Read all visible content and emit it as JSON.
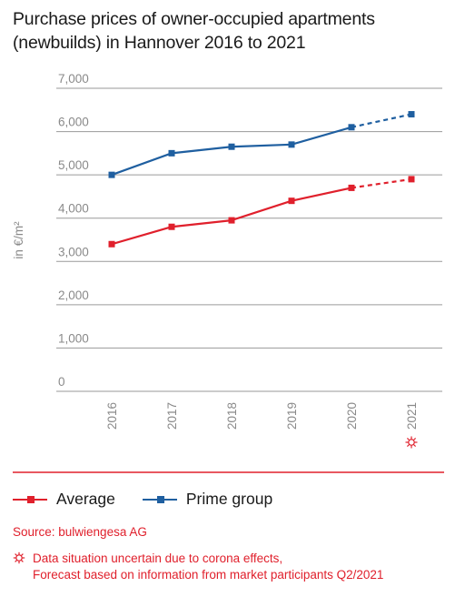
{
  "title": "Purchase prices of owner-occupied apartments (newbuilds) in Hannover 2016 to 2021",
  "colors": {
    "average": "#e0202c",
    "prime": "#1f5fa0",
    "grid": "#9a9a9a",
    "axis_text": "#8a8a8a",
    "separator": "#e0202c"
  },
  "chart_data": {
    "type": "line",
    "categories": [
      "2016",
      "2017",
      "2018",
      "2019",
      "2020",
      "2021"
    ],
    "ylabel": "in €/m²",
    "ylim": [
      0,
      7000
    ],
    "yticks": [
      0,
      1000,
      2000,
      3000,
      4000,
      5000,
      6000,
      7000
    ],
    "ytick_labels": [
      "0",
      "1,000",
      "2,000",
      "3,000",
      "4,000",
      "5,000",
      "6,000",
      "7,000"
    ],
    "grid": true,
    "forecast_from": "2020",
    "forecast_marker_category": "2021",
    "series": [
      {
        "name": "Average",
        "values": [
          3400,
          3800,
          3950,
          4400,
          4700,
          4900
        ]
      },
      {
        "name": "Prime group",
        "values": [
          5000,
          5500,
          5650,
          5700,
          6100,
          6400
        ]
      }
    ]
  },
  "legend": {
    "average_label": "Average",
    "prime_label": "Prime group"
  },
  "source": "Source: bulwiengesa AG",
  "note": {
    "line1": "Data situation uncertain due to corona effects,",
    "line2": "Forecast based on information from market participants Q2/2021"
  }
}
